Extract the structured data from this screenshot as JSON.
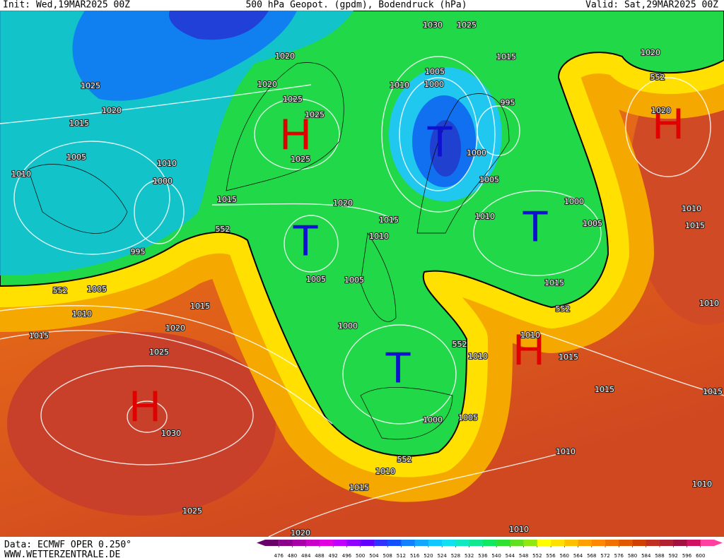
{
  "header": {
    "init": "Init: Wed,19MAR2025 00Z",
    "title": "500 hPa Geopot. (gpdm), Bodendruck (hPa)",
    "valid": "Valid: Sat,29MAR2025 00Z"
  },
  "map": {
    "pressure_systems": [
      {
        "label": "H",
        "color": "#e00000"
      },
      {
        "label": "H",
        "color": "#e00000"
      },
      {
        "label": "T",
        "color": "#1010d0"
      },
      {
        "label": "T",
        "color": "#1010d0"
      },
      {
        "label": "T",
        "color": "#1010d0"
      },
      {
        "label": "H",
        "color": "#e00000"
      },
      {
        "label": "H",
        "color": "#e00000"
      },
      {
        "label": "T",
        "color": "#1010d0"
      }
    ],
    "isobar_labels": [
      1030,
      1025,
      1020,
      1015,
      1020,
      1025,
      1020,
      1005,
      1010,
      1000,
      1025,
      1020,
      995,
      1025,
      1015,
      1025,
      1000,
      1005,
      1010,
      1010,
      1000,
      1005,
      1015,
      1020,
      1000,
      1015,
      1010,
      1015,
      1010,
      1005,
      1010,
      995,
      1005,
      1005,
      1015,
      1005,
      1010,
      1015,
      1020,
      1015,
      1000,
      1010,
      1010,
      1025,
      1015,
      1015,
      1030,
      1000,
      1005,
      1010,
      1010,
      1015,
      1010,
      1025,
      1010,
      1020,
      1020,
      1010,
      1015
    ],
    "geopotential_labels": [
      552,
      552,
      552,
      552,
      552,
      552
    ]
  },
  "footer": {
    "source": "Data: ECMWF OPER 0.250°",
    "website": "WWW.WETTERZENTRALE.DE"
  },
  "colorbar": {
    "ticks": [
      476,
      480,
      484,
      488,
      492,
      496,
      500,
      504,
      508,
      512,
      516,
      520,
      524,
      528,
      532,
      536,
      540,
      544,
      548,
      552,
      556,
      560,
      564,
      568,
      572,
      576,
      580,
      584,
      588,
      592,
      596,
      600
    ],
    "colors": [
      "#6a006a",
      "#8a008a",
      "#a800a8",
      "#c800c8",
      "#e000e0",
      "#c000ff",
      "#9000ff",
      "#6000ff",
      "#3030ff",
      "#1050ff",
      "#1080ff",
      "#10a8ff",
      "#10c8ff",
      "#10e0f0",
      "#10e8c0",
      "#10e890",
      "#10e860",
      "#30e030",
      "#60e020",
      "#90e810",
      "#ffff00",
      "#ffe000",
      "#ffc000",
      "#ffa000",
      "#ff8800",
      "#f07000",
      "#e05800",
      "#d04000",
      "#c03020",
      "#b02030",
      "#a01040",
      "#d01060",
      "#ff40a0"
    ]
  }
}
